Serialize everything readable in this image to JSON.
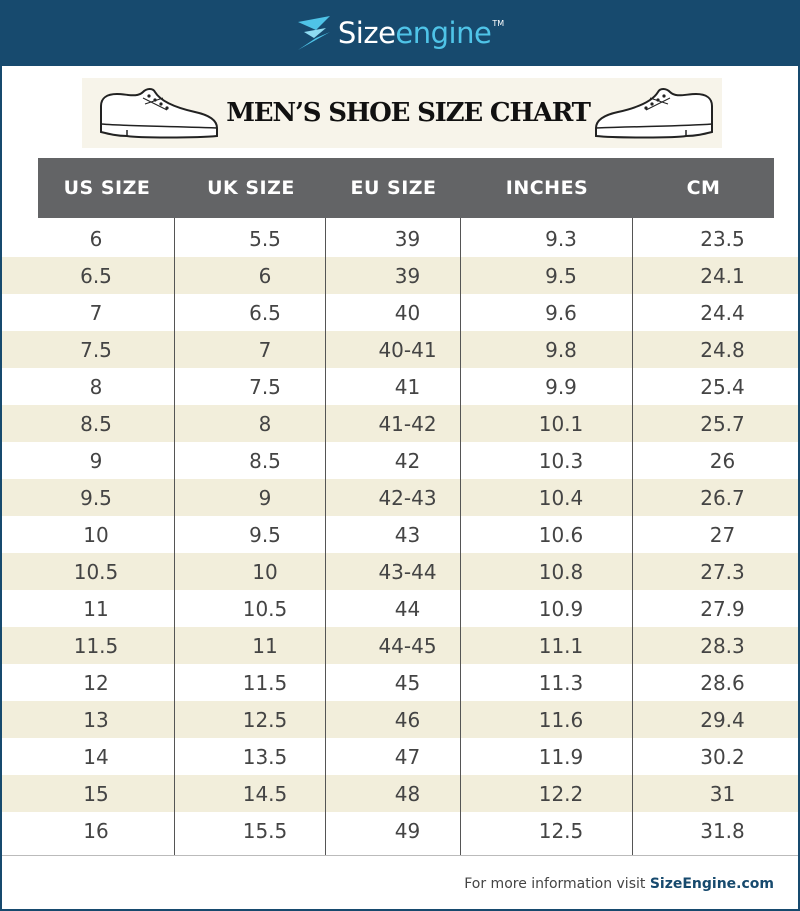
{
  "brand": {
    "name_part1": "Size",
    "name_part2": "engine",
    "trademark": "TM"
  },
  "title": "MEN’S SHOE SIZE CHART",
  "table": {
    "columns": [
      "US SIZE",
      "UK SIZE",
      "EU SIZE",
      "INCHES",
      "CM"
    ],
    "rows": [
      [
        "6",
        "5.5",
        "39",
        "9.3",
        "23.5"
      ],
      [
        "6.5",
        "6",
        "39",
        "9.5",
        "24.1"
      ],
      [
        "7",
        "6.5",
        "40",
        "9.6",
        "24.4"
      ],
      [
        "7.5",
        "7",
        "40-41",
        "9.8",
        "24.8"
      ],
      [
        "8",
        "7.5",
        "41",
        "9.9",
        "25.4"
      ],
      [
        "8.5",
        "8",
        "41-42",
        "10.1",
        "25.7"
      ],
      [
        "9",
        "8.5",
        "42",
        "10.3",
        "26"
      ],
      [
        "9.5",
        "9",
        "42-43",
        "10.4",
        "26.7"
      ],
      [
        "10",
        "9.5",
        "43",
        "10.6",
        "27"
      ],
      [
        "10.5",
        "10",
        "43-44",
        "10.8",
        "27.3"
      ],
      [
        "11",
        "10.5",
        "44",
        "10.9",
        "27.9"
      ],
      [
        "11.5",
        "11",
        "44-45",
        "11.1",
        "28.3"
      ],
      [
        "12",
        "11.5",
        "45",
        "11.3",
        "28.6"
      ],
      [
        "13",
        "12.5",
        "46",
        "11.6",
        "29.4"
      ],
      [
        "14",
        "13.5",
        "47",
        "11.9",
        "30.2"
      ],
      [
        "15",
        "14.5",
        "48",
        "12.2",
        "31"
      ],
      [
        "16",
        "15.5",
        "49",
        "12.5",
        "31.8"
      ]
    ]
  },
  "footer": {
    "text": "For more information visit ",
    "link": "SizeEngine.com"
  },
  "colors": {
    "brand_blue": "#174a6e",
    "brand_accent": "#4fc4e8",
    "header_gray": "#636466",
    "row_alt": "#f2eedb"
  },
  "icons": [
    "sizeengine-logo-icon",
    "shoe-left-icon",
    "shoe-right-icon"
  ]
}
